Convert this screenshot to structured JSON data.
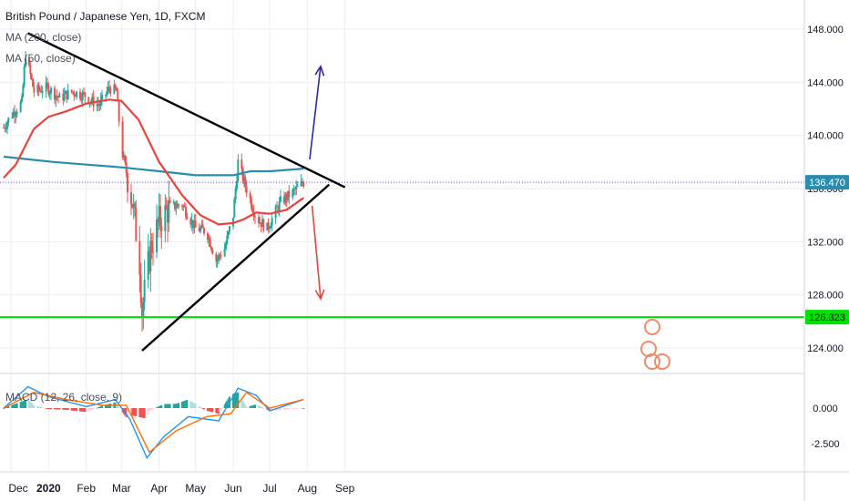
{
  "header": {
    "symbol": "British Pound / Japanese Yen, 1D, FXCM",
    "ma200_label": "MA (200, close)",
    "ma50_label": "MA (50, close)",
    "macd_label": "MACD (12, 26, close, 9)"
  },
  "badges": {
    "current_price": "136.470",
    "support_level": "126.323"
  },
  "colors": {
    "up": "#26a69a",
    "down": "#ef5350",
    "ma200": "#2b8cae",
    "ma50": "#e8433a",
    "macd_line": "#2196f3",
    "signal_line": "#ff6d00",
    "support": "#00e000",
    "arrow_up": "#2a2aa8",
    "arrow_down": "#e8433a"
  },
  "chart_data": [
    {
      "type": "candlestick",
      "title": "British Pound / Japanese Yen, 1D, FXCM",
      "x_tick_labels": [
        "Dec",
        "2020",
        "Feb",
        "Mar",
        "Apr",
        "May",
        "Jun",
        "Jul",
        "Aug",
        "Sep"
      ],
      "y_tick_labels": [
        "148.000",
        "144.000",
        "140.000",
        "136.000",
        "132.000",
        "128.000",
        "124.000"
      ],
      "ylim": [
        121.3,
        150
      ],
      "last_price": 136.47,
      "support": 126.323,
      "ma200": [
        {
          "x": "2019-11-25",
          "y": 138.4
        },
        {
          "x": "2019-12-15",
          "y": 138.2
        },
        {
          "x": "2020-01-05",
          "y": 138.0
        },
        {
          "x": "2020-02-01",
          "y": 137.8
        },
        {
          "x": "2020-03-01",
          "y": 137.6
        },
        {
          "x": "2020-04-01",
          "y": 137.3
        },
        {
          "x": "2020-05-01",
          "y": 137.0
        },
        {
          "x": "2020-06-01",
          "y": 137.0
        },
        {
          "x": "2020-06-15",
          "y": 137.3
        },
        {
          "x": "2020-07-01",
          "y": 137.3
        },
        {
          "x": "2020-07-15",
          "y": 137.4
        },
        {
          "x": "2020-07-29",
          "y": 137.5
        }
      ],
      "ma50": [
        {
          "x": "2019-11-25",
          "y": 136.8
        },
        {
          "x": "2019-12-05",
          "y": 137.8
        },
        {
          "x": "2019-12-20",
          "y": 140.5
        },
        {
          "x": "2020-01-01",
          "y": 141.4
        },
        {
          "x": "2020-01-15",
          "y": 141.8
        },
        {
          "x": "2020-02-01",
          "y": 142.4
        },
        {
          "x": "2020-02-20",
          "y": 142.7
        },
        {
          "x": "2020-03-01",
          "y": 142.6
        },
        {
          "x": "2020-03-15",
          "y": 141.2
        },
        {
          "x": "2020-04-01",
          "y": 138.0
        },
        {
          "x": "2020-04-20",
          "y": 135.5
        },
        {
          "x": "2020-05-05",
          "y": 134.0
        },
        {
          "x": "2020-05-20",
          "y": 133.3
        },
        {
          "x": "2020-06-01",
          "y": 133.4
        },
        {
          "x": "2020-06-10",
          "y": 133.7
        },
        {
          "x": "2020-06-20",
          "y": 134.2
        },
        {
          "x": "2020-07-01",
          "y": 134.1
        },
        {
          "x": "2020-07-15",
          "y": 134.4
        },
        {
          "x": "2020-07-29",
          "y": 135.3
        }
      ],
      "close_path": [
        {
          "x": "2019-11-25",
          "y": 140.6
        },
        {
          "x": "2019-12-01",
          "y": 141.5
        },
        {
          "x": "2019-12-10",
          "y": 142.5
        },
        {
          "x": "2019-12-13",
          "y": 146.2
        },
        {
          "x": "2019-12-20",
          "y": 143.3
        },
        {
          "x": "2019-12-31",
          "y": 143.6
        },
        {
          "x": "2020-01-10",
          "y": 142.8
        },
        {
          "x": "2020-01-20",
          "y": 143.3
        },
        {
          "x": "2020-01-31",
          "y": 143.0
        },
        {
          "x": "2020-02-05",
          "y": 142.6
        },
        {
          "x": "2020-02-12",
          "y": 142.3
        },
        {
          "x": "2020-02-20",
          "y": 143.6
        },
        {
          "x": "2020-02-26",
          "y": 143.3
        },
        {
          "x": "2020-03-01",
          "y": 139.0
        },
        {
          "x": "2020-03-10",
          "y": 135.0
        },
        {
          "x": "2020-03-16",
          "y": 130.5
        },
        {
          "x": "2020-03-18",
          "y": 126.8
        },
        {
          "x": "2020-03-25",
          "y": 131.5
        },
        {
          "x": "2020-04-01",
          "y": 133.5
        },
        {
          "x": "2020-04-10",
          "y": 134.6
        },
        {
          "x": "2020-04-20",
          "y": 134.8
        },
        {
          "x": "2020-05-01",
          "y": 133.0
        },
        {
          "x": "2020-05-10",
          "y": 132.8
        },
        {
          "x": "2020-05-18",
          "y": 130.6
        },
        {
          "x": "2020-05-25",
          "y": 131.5
        },
        {
          "x": "2020-06-01",
          "y": 134.0
        },
        {
          "x": "2020-06-05",
          "y": 138.0
        },
        {
          "x": "2020-06-10",
          "y": 136.5
        },
        {
          "x": "2020-06-20",
          "y": 133.8
        },
        {
          "x": "2020-06-29",
          "y": 133.0
        },
        {
          "x": "2020-07-10",
          "y": 135.0
        },
        {
          "x": "2020-07-20",
          "y": 135.7
        },
        {
          "x": "2020-07-29",
          "y": 136.47
        }
      ],
      "trendlines": [
        {
          "name": "Descending resistance",
          "from": {
            "x": "2019-12-15",
            "y": 147.7
          },
          "to": {
            "x": "2020-09-01",
            "y": 136.1
          }
        },
        {
          "name": "Ascending support",
          "from": {
            "x": "2020-03-18",
            "y": 123.8
          },
          "to": {
            "x": "2020-08-19",
            "y": 136.3
          }
        }
      ],
      "projection_arrows": [
        {
          "direction": "up",
          "from": {
            "x": "2020-08-03",
            "y": 138.2
          },
          "to": {
            "x": "2020-08-12",
            "y": 145.2
          }
        },
        {
          "direction": "down",
          "from": {
            "x": "2020-08-05",
            "y": 134.7
          },
          "to": {
            "x": "2020-08-12",
            "y": 127.7
          }
        }
      ]
    },
    {
      "type": "line",
      "title": "MACD (12, 26, close, 9)",
      "y_tick_labels": [
        "0.000",
        "-2.500"
      ],
      "ylim": [
        -4.6,
        2.6
      ],
      "macd": [
        {
          "x": "2019-11-25",
          "y": 0.0
        },
        {
          "x": "2019-12-15",
          "y": 1.5
        },
        {
          "x": "2020-01-01",
          "y": 0.8
        },
        {
          "x": "2020-02-01",
          "y": 0.1
        },
        {
          "x": "2020-02-25",
          "y": 0.6
        },
        {
          "x": "2020-03-08",
          "y": -0.8
        },
        {
          "x": "2020-03-22",
          "y": -3.5
        },
        {
          "x": "2020-04-05",
          "y": -2.0
        },
        {
          "x": "2020-04-25",
          "y": -0.6
        },
        {
          "x": "2020-05-20",
          "y": -0.9
        },
        {
          "x": "2020-06-05",
          "y": 1.4
        },
        {
          "x": "2020-06-20",
          "y": 0.9
        },
        {
          "x": "2020-07-01",
          "y": -0.2
        },
        {
          "x": "2020-07-29",
          "y": 0.6
        }
      ],
      "signal": [
        {
          "x": "2019-11-25",
          "y": 0.0
        },
        {
          "x": "2019-12-20",
          "y": 1.1
        },
        {
          "x": "2020-01-15",
          "y": 0.6
        },
        {
          "x": "2020-02-15",
          "y": 0.2
        },
        {
          "x": "2020-03-05",
          "y": 0.2
        },
        {
          "x": "2020-03-24",
          "y": -3.1
        },
        {
          "x": "2020-04-15",
          "y": -1.6
        },
        {
          "x": "2020-05-10",
          "y": -0.6
        },
        {
          "x": "2020-05-30",
          "y": -0.4
        },
        {
          "x": "2020-06-12",
          "y": 1.1
        },
        {
          "x": "2020-07-01",
          "y": 0.0
        },
        {
          "x": "2020-07-29",
          "y": 0.6
        }
      ]
    }
  ]
}
